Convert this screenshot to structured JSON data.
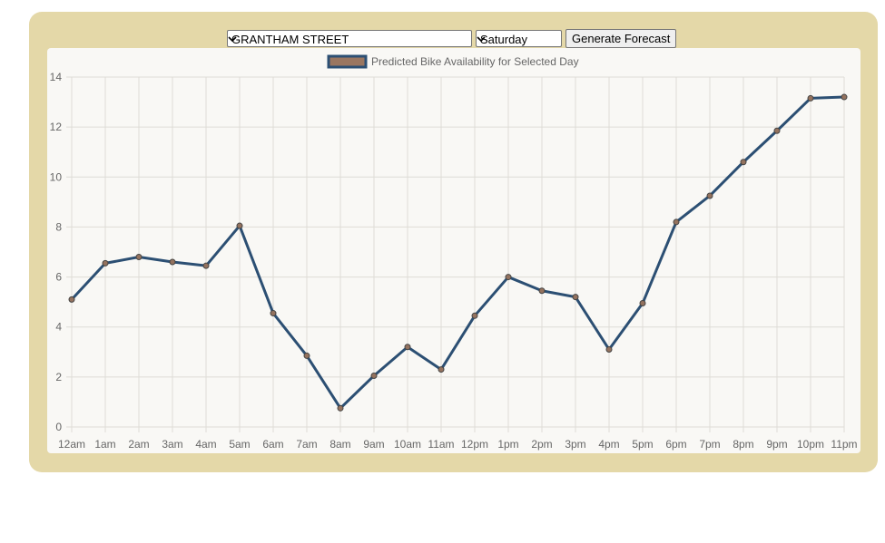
{
  "colors": {
    "panel_bg": "#e4d8a8",
    "line": "#2c4f73",
    "point_fill": "#94725e",
    "legend_box_fill": "#9a7660",
    "grid": "#dedcd6"
  },
  "controls": {
    "station_value": "GRANTHAM STREET",
    "day_value": "Saturday",
    "generate_label": "Generate Forecast"
  },
  "chart_data": {
    "type": "line",
    "title": "",
    "xlabel": "",
    "ylabel": "",
    "categories": [
      "12am",
      "1am",
      "2am",
      "3am",
      "4am",
      "5am",
      "6am",
      "7am",
      "8am",
      "9am",
      "10am",
      "11am",
      "12pm",
      "1pm",
      "2pm",
      "3pm",
      "4pm",
      "5pm",
      "6pm",
      "7pm",
      "8pm",
      "9pm",
      "10pm",
      "11pm"
    ],
    "series": [
      {
        "name": "Predicted Bike Availability for Selected Day",
        "values": [
          5.1,
          6.55,
          6.8,
          6.6,
          6.45,
          8.05,
          4.55,
          2.85,
          0.75,
          2.05,
          3.2,
          2.3,
          4.45,
          6.0,
          5.45,
          5.2,
          3.1,
          4.95,
          8.2,
          9.25,
          10.6,
          11.85,
          13.15,
          13.2
        ]
      }
    ],
    "ylim": [
      0,
      14
    ],
    "yticks": [
      0,
      2,
      4,
      6,
      8,
      10,
      12,
      14
    ],
    "grid": true,
    "legend_position": "top"
  }
}
